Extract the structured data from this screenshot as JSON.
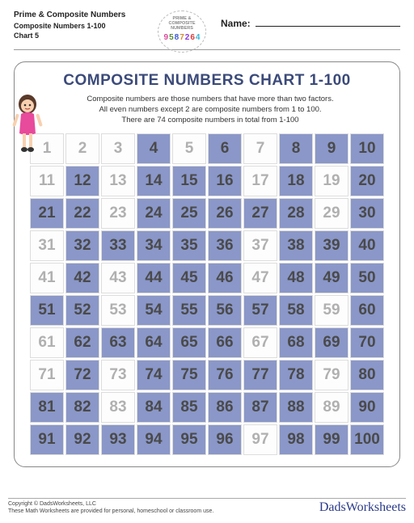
{
  "header": {
    "title": "Prime & Composite Numbers",
    "subtitle": "Composite Numbers 1-100",
    "chart_label": "Chart 5",
    "name_label": "Name:",
    "badge_line1": "PRIME &",
    "badge_line2": "COMPOSITE",
    "badge_line3": "NUMBERS",
    "badge_digits": [
      "9",
      "5",
      "8",
      "7",
      "2",
      "6",
      "4"
    ],
    "badge_digit_colors": [
      "#d94a9c",
      "#5a8a3a",
      "#3a5ad9",
      "#d98c2a",
      "#8a3ad9",
      "#d93a3a",
      "#3ab5d9"
    ]
  },
  "main": {
    "title": "COMPOSITE  NUMBERS CHART 1-100",
    "desc_line1": "Composite numbers are those numbers that have more than two factors.",
    "desc_line2": "All even numbers except 2 are composite numbers from 1 to 100.",
    "desc_line3": "There are 74 composite numbers in total from 1-100"
  },
  "grid": {
    "rows": 10,
    "cols": 10,
    "composite_bg": "#8a97c8",
    "plain_bg": "#fdfdfd",
    "text_color_plain": "#b0b0b0",
    "text_color_composite": "#4a4a4a",
    "composites": [
      4,
      6,
      8,
      9,
      10,
      12,
      14,
      15,
      16,
      18,
      20,
      21,
      22,
      24,
      25,
      26,
      27,
      28,
      30,
      32,
      33,
      34,
      35,
      36,
      38,
      39,
      40,
      42,
      44,
      45,
      46,
      48,
      49,
      50,
      51,
      52,
      54,
      55,
      56,
      57,
      58,
      60,
      62,
      63,
      64,
      65,
      66,
      68,
      69,
      70,
      72,
      74,
      75,
      76,
      77,
      78,
      80,
      81,
      82,
      84,
      85,
      86,
      87,
      88,
      90,
      91,
      92,
      93,
      94,
      95,
      96,
      98,
      99,
      100
    ]
  },
  "footer": {
    "copy1": "Copyright © DadsWorksheets, LLC",
    "copy2": "These Math Worksheets are provided for personal, homeschool or classroom use.",
    "site": "DadsWorksheets"
  },
  "girl_colors": {
    "hair": "#5a3a2a",
    "skin": "#f8d0b0",
    "dress": "#e84a9c",
    "shoes": "#333"
  }
}
